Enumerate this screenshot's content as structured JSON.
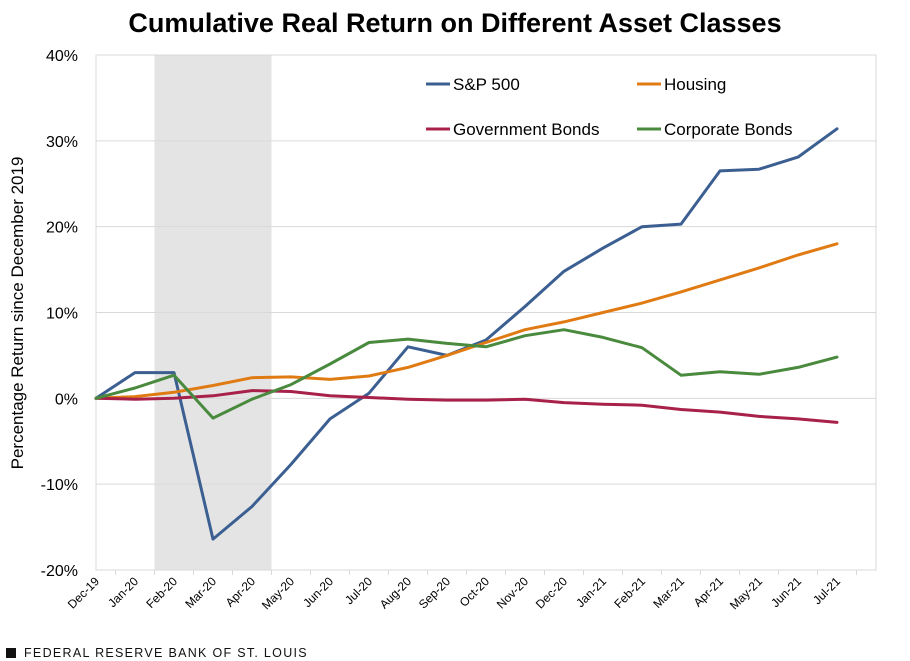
{
  "chart_data": {
    "type": "line",
    "title": "Cumulative Real Return on Different Asset Classes",
    "ylabel": "Percentage Return since December 2019",
    "xlabel": "",
    "categories": [
      "Dec-19",
      "Jan-20",
      "Feb-20",
      "Mar-20",
      "Apr-20",
      "May-20",
      "Jun-20",
      "Jul-20",
      "Aug-20",
      "Sep-20",
      "Oct-20",
      "Nov-20",
      "Dec-20",
      "Jan-21",
      "Feb-21",
      "Mar-21",
      "Apr-21",
      "May-21",
      "Jun-21",
      "Jul-21"
    ],
    "ylim": [
      -20,
      40
    ],
    "yticks": [
      -20,
      -10,
      0,
      10,
      20,
      30,
      40
    ],
    "ytick_labels": [
      "-20%",
      "-10%",
      "0%",
      "10%",
      "20%",
      "30%",
      "40%"
    ],
    "grid": true,
    "legend_position": "top",
    "shaded_region": {
      "from": "Jan-20",
      "to": "Apr-20",
      "color": "#e4e4e4"
    },
    "series": [
      {
        "name": "S&P 500",
        "color": "#3c5f92",
        "values": [
          0,
          3.0,
          3.0,
          -16.4,
          -12.6,
          -7.7,
          -2.4,
          0.6,
          6.0,
          5.0,
          6.8,
          10.7,
          14.8,
          17.5,
          20.0,
          20.3,
          26.5,
          26.7,
          28.1,
          31.4
        ]
      },
      {
        "name": "Housing",
        "color": "#e07b14",
        "values": [
          0,
          0.2,
          0.7,
          1.5,
          2.4,
          2.5,
          2.2,
          2.6,
          3.6,
          5.0,
          6.5,
          8.0,
          8.9,
          10.0,
          11.1,
          12.4,
          13.8,
          15.2,
          16.7,
          18.0
        ]
      },
      {
        "name": "Government Bonds",
        "color": "#a8214a",
        "values": [
          0,
          -0.1,
          0.0,
          0.3,
          0.9,
          0.8,
          0.3,
          0.1,
          -0.1,
          -0.2,
          -0.2,
          -0.1,
          -0.5,
          -0.7,
          -0.8,
          -1.3,
          -1.6,
          -2.1,
          -2.4,
          -2.8
        ]
      },
      {
        "name": "Corporate Bonds",
        "color": "#4a8a3e",
        "values": [
          0,
          1.2,
          2.7,
          -2.3,
          -0.1,
          1.6,
          4.0,
          6.5,
          6.9,
          6.4,
          6.0,
          7.3,
          8.0,
          7.1,
          5.9,
          2.7,
          3.1,
          2.8,
          3.6,
          4.8
        ]
      }
    ]
  },
  "footer": {
    "text": "FEDERAL RESERVE BANK OF ST. LOUIS"
  }
}
